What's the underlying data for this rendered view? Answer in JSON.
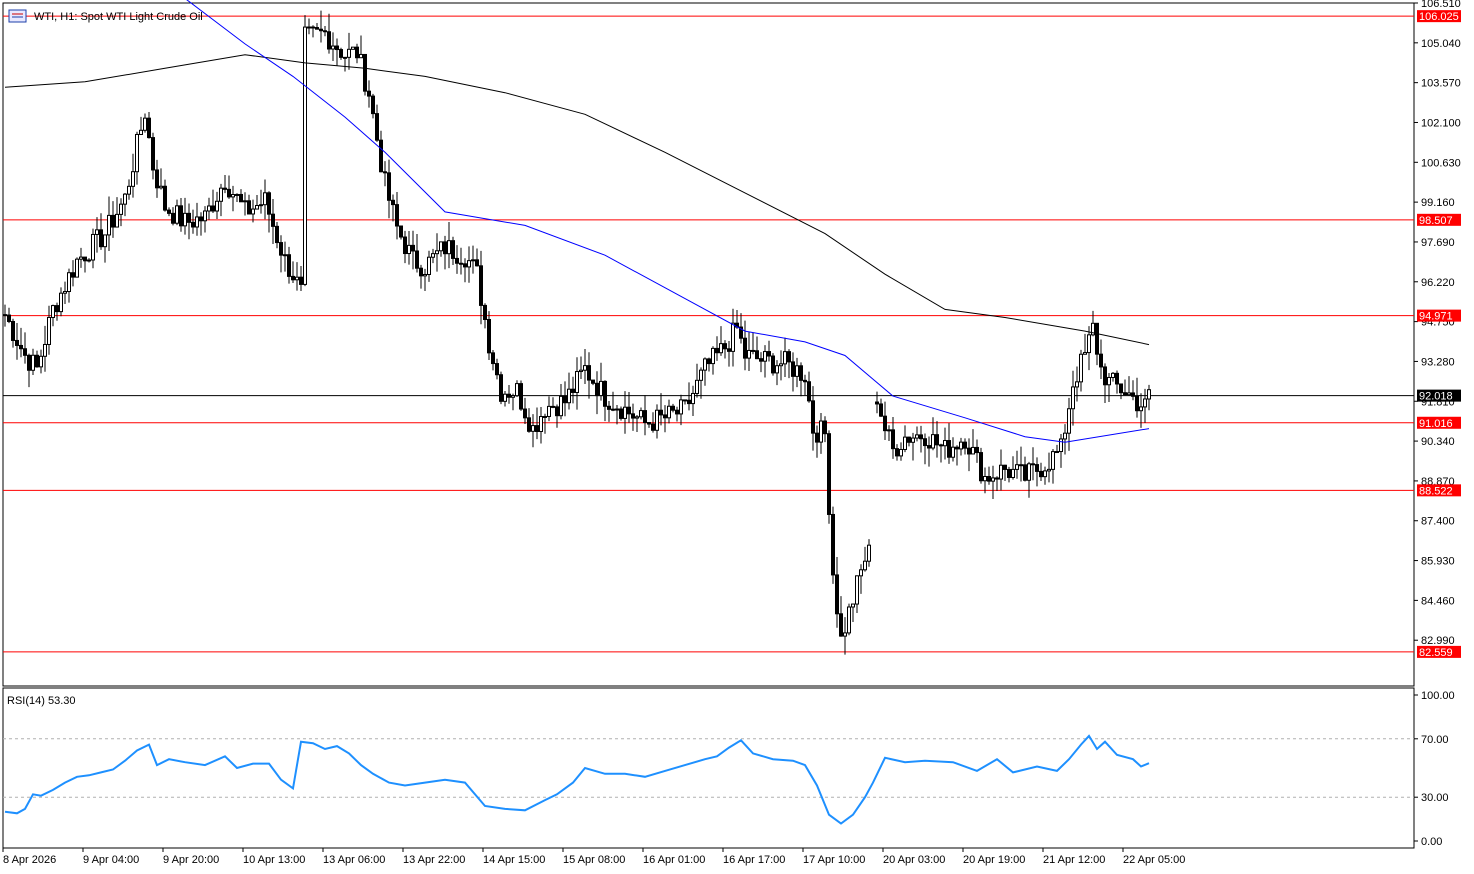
{
  "chart_data": [
    {
      "type": "candlestick",
      "title": "WTI, H1:  Spot WTI Light Crude Oil",
      "ylim": [
        81.3,
        106.51
      ],
      "y_ticks": [
        106.51,
        105.04,
        103.57,
        102.1,
        100.63,
        99.16,
        97.69,
        96.22,
        94.75,
        93.28,
        91.81,
        90.34,
        88.87,
        87.4,
        85.93,
        84.46,
        82.99
      ],
      "y_tick_labels": [
        "106.510",
        "105.040",
        "103.570",
        "102.100",
        "100.630",
        "99.160",
        "97.690",
        "96.220",
        "94.750",
        "93.280",
        "91.810",
        "90.340",
        "88.870",
        "87.400",
        "85.930",
        "84.460",
        "82.990"
      ],
      "x_tick_labels": [
        "8 Apr 2026",
        "9 Apr 04:00",
        "9 Apr 20:00",
        "10 Apr 13:00",
        "13 Apr 06:00",
        "13 Apr 22:00",
        "14 Apr 15:00",
        "15 Apr 08:00",
        "16 Apr 01:00",
        "16 Apr 17:00",
        "17 Apr 10:00",
        "20 Apr 03:00",
        "20 Apr 19:00",
        "21 Apr 12:00",
        "22 Apr 05:00"
      ],
      "horizontal_levels": [
        {
          "value": 106.025,
          "label": "106.025",
          "color": "#ff0000"
        },
        {
          "value": 98.507,
          "label": "98.507",
          "color": "#ff0000"
        },
        {
          "value": 94.971,
          "label": "94.971",
          "color": "#ff0000"
        },
        {
          "value": 91.016,
          "label": "91.016",
          "color": "#ff0000"
        },
        {
          "value": 88.522,
          "label": "88.522",
          "color": "#ff0000"
        },
        {
          "value": 82.559,
          "label": "82.559",
          "color": "#ff0000"
        }
      ],
      "current_price": {
        "value": 92.018,
        "label": "92.018",
        "color": "#000000"
      },
      "close_anchors": [
        [
          0,
          95.0
        ],
        [
          5,
          93.5
        ],
        [
          8,
          93.0
        ],
        [
          12,
          95.2
        ],
        [
          18,
          97.0
        ],
        [
          25,
          98.0
        ],
        [
          30,
          99.3
        ],
        [
          35,
          102.5
        ],
        [
          37,
          100.5
        ],
        [
          40,
          99.0
        ],
        [
          45,
          98.4
        ],
        [
          50,
          98.6
        ],
        [
          55,
          100.0
        ],
        [
          60,
          98.8
        ],
        [
          65,
          99.2
        ],
        [
          70,
          97.0
        ],
        [
          72,
          96.5
        ],
        [
          74,
          95.8
        ],
        [
          75,
          105.2
        ],
        [
          80,
          105.4
        ],
        [
          85,
          104.6
        ],
        [
          88,
          104.7
        ],
        [
          91,
          103.2
        ],
        [
          93,
          101.5
        ],
        [
          95,
          99.8
        ],
        [
          98,
          98.2
        ],
        [
          102,
          97.0
        ],
        [
          105,
          96.8
        ],
        [
          110,
          97.5
        ],
        [
          115,
          97.2
        ],
        [
          118,
          96.5
        ],
        [
          121,
          94.0
        ],
        [
          124,
          92.2
        ],
        [
          128,
          92.2
        ],
        [
          132,
          90.8
        ],
        [
          135,
          91.6
        ],
        [
          140,
          91.8
        ],
        [
          145,
          93.0
        ],
        [
          150,
          92.0
        ],
        [
          155,
          91.5
        ],
        [
          160,
          91.0
        ],
        [
          165,
          91.2
        ],
        [
          170,
          91.5
        ],
        [
          175,
          93.0
        ],
        [
          180,
          93.8
        ],
        [
          183,
          94.5
        ],
        [
          185,
          93.5
        ],
        [
          190,
          93.3
        ],
        [
          195,
          93.2
        ],
        [
          200,
          92.8
        ],
        [
          202,
          90.8
        ],
        [
          205,
          90.6
        ],
        [
          207,
          85.5
        ],
        [
          209,
          83.0
        ],
        [
          211,
          84.0
        ],
        [
          213,
          85.0
        ],
        [
          215,
          86.0
        ],
        [
          216,
          86.2
        ],
        [
          217,
          null
        ],
        [
          218,
          92.0
        ],
        [
          220,
          90.8
        ],
        [
          222,
          90.0
        ],
        [
          225,
          90.5
        ],
        [
          230,
          90.6
        ],
        [
          235,
          90.0
        ],
        [
          240,
          90.5
        ],
        [
          245,
          89.0
        ],
        [
          250,
          89.3
        ],
        [
          255,
          89.0
        ],
        [
          260,
          89.5
        ],
        [
          264,
          90.0
        ],
        [
          267,
          92.5
        ],
        [
          270,
          93.5
        ],
        [
          272,
          94.5
        ],
        [
          274,
          93.0
        ],
        [
          276,
          92.5
        ],
        [
          280,
          92.2
        ],
        [
          283,
          91.8
        ],
        [
          285,
          91.6
        ],
        [
          286,
          92.018
        ]
      ],
      "ma_fast": {
        "color": "#0000ff",
        "points": [
          [
            0,
            108.5
          ],
          [
            35,
            107.8
          ],
          [
            60,
            105.0
          ],
          [
            72,
            103.8
          ],
          [
            85,
            102.3
          ],
          [
            95,
            101.0
          ],
          [
            110,
            98.8
          ],
          [
            130,
            98.3
          ],
          [
            150,
            97.2
          ],
          [
            170,
            95.6
          ],
          [
            185,
            94.4
          ],
          [
            200,
            94.0
          ],
          [
            210,
            93.5
          ],
          [
            222,
            92.0
          ],
          [
            240,
            91.2
          ],
          [
            255,
            90.5
          ],
          [
            265,
            90.3
          ],
          [
            286,
            90.8
          ]
        ]
      },
      "ma_slow": {
        "color": "#000000",
        "points": [
          [
            0,
            103.4
          ],
          [
            20,
            103.6
          ],
          [
            40,
            104.1
          ],
          [
            60,
            104.6
          ],
          [
            75,
            104.3
          ],
          [
            90,
            104.1
          ],
          [
            105,
            103.8
          ],
          [
            125,
            103.2
          ],
          [
            145,
            102.4
          ],
          [
            165,
            101.0
          ],
          [
            185,
            99.5
          ],
          [
            205,
            98.0
          ],
          [
            220,
            96.5
          ],
          [
            235,
            95.2
          ],
          [
            250,
            94.9
          ],
          [
            270,
            94.4
          ],
          [
            286,
            93.9
          ]
        ]
      }
    },
    {
      "type": "line",
      "title": "RSI(14) 53.30",
      "ylim": [
        0,
        100
      ],
      "y_ticks": [
        100,
        70,
        30,
        0
      ],
      "y_tick_labels": [
        "100.00",
        "70.00",
        "30.00",
        "0.00"
      ],
      "levels": [
        70,
        30
      ],
      "series": [
        {
          "color": "#1e90ff",
          "points": [
            [
              0,
              20
            ],
            [
              3,
              19
            ],
            [
              5,
              22
            ],
            [
              7,
              32
            ],
            [
              9,
              31
            ],
            [
              12,
              35
            ],
            [
              15,
              40
            ],
            [
              18,
              44
            ],
            [
              21,
              45
            ],
            [
              24,
              47
            ],
            [
              27,
              49
            ],
            [
              30,
              55
            ],
            [
              33,
              62
            ],
            [
              36,
              66
            ],
            [
              38,
              52
            ],
            [
              41,
              56
            ],
            [
              45,
              54
            ],
            [
              50,
              52
            ],
            [
              55,
              58
            ],
            [
              58,
              50
            ],
            [
              62,
              53
            ],
            [
              66,
              53
            ],
            [
              69,
              42
            ],
            [
              72,
              36
            ],
            [
              74,
              68
            ],
            [
              77,
              67
            ],
            [
              80,
              63
            ],
            [
              83,
              65
            ],
            [
              86,
              60
            ],
            [
              89,
              52
            ],
            [
              92,
              46
            ],
            [
              96,
              40
            ],
            [
              100,
              38
            ],
            [
              105,
              40
            ],
            [
              110,
              42
            ],
            [
              115,
              40
            ],
            [
              120,
              24
            ],
            [
              125,
              22
            ],
            [
              130,
              21
            ],
            [
              135,
              28
            ],
            [
              138,
              32
            ],
            [
              142,
              40
            ],
            [
              145,
              50
            ],
            [
              150,
              46
            ],
            [
              155,
              46
            ],
            [
              160,
              44
            ],
            [
              165,
              48
            ],
            [
              170,
              52
            ],
            [
              175,
              56
            ],
            [
              178,
              58
            ],
            [
              181,
              64
            ],
            [
              184,
              69
            ],
            [
              187,
              60
            ],
            [
              192,
              56
            ],
            [
              197,
              55
            ],
            [
              200,
              52
            ],
            [
              203,
              38
            ],
            [
              206,
              18
            ],
            [
              209,
              12
            ],
            [
              212,
              18
            ],
            [
              215,
              30
            ],
            [
              217,
              40
            ],
            [
              220,
              57
            ],
            [
              225,
              54
            ],
            [
              230,
              55
            ],
            [
              237,
              54
            ],
            [
              243,
              48
            ],
            [
              248,
              56
            ],
            [
              252,
              47
            ],
            [
              258,
              51
            ],
            [
              263,
              48
            ],
            [
              266,
              56
            ],
            [
              269,
              66
            ],
            [
              271,
              72
            ],
            [
              273,
              63
            ],
            [
              275,
              68
            ],
            [
              278,
              59
            ],
            [
              282,
              56
            ],
            [
              284,
              51
            ],
            [
              286,
              53.3
            ]
          ]
        }
      ]
    }
  ]
}
